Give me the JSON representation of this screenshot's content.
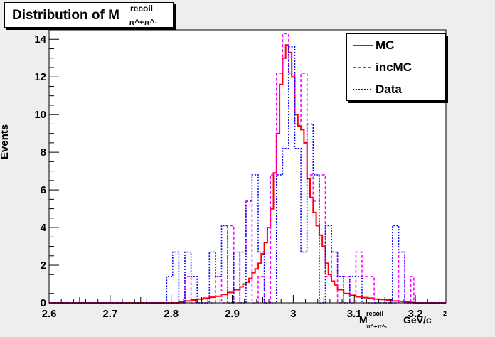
{
  "title": {
    "main": "Distribution of M",
    "sup": "recoil",
    "sub": "π^+π^-"
  },
  "legend": {
    "items": [
      {
        "label": "MC",
        "color": "#ff0000",
        "dash": ""
      },
      {
        "label": "incMC",
        "color": "#ff00ff",
        "dash": "4,3"
      },
      {
        "label": "Data",
        "color": "#0000ff",
        "dash": "2,2"
      }
    ]
  },
  "xaxis": {
    "main": "M",
    "sup": "recoil",
    "sub": "π^+π^-",
    "unit": "GeV/c",
    "unit_sup": "2"
  },
  "yaxis": {
    "label": "Events"
  },
  "chart_data": {
    "type": "line",
    "xlim": [
      2.6,
      3.25
    ],
    "ylim": [
      0,
      14.5
    ],
    "bin_width": 0.005,
    "xticks": [
      2.6,
      2.7,
      2.8,
      2.9,
      3.0,
      3.1,
      3.2
    ],
    "xtick_labels": [
      "2.6",
      "2.7",
      "2.8",
      "2.9",
      "3",
      "3.1",
      "3.2"
    ],
    "yticks": [
      0,
      2,
      4,
      6,
      8,
      10,
      12,
      14
    ],
    "ytick_labels": [
      "0",
      "2",
      "4",
      "6",
      "8",
      "10",
      "12",
      "14"
    ],
    "series": [
      {
        "name": "MC",
        "color": "#ff0000",
        "x": [
          2.815,
          2.825,
          2.835,
          2.845,
          2.855,
          2.865,
          2.875,
          2.885,
          2.895,
          2.905,
          2.915,
          2.92,
          2.925,
          2.93,
          2.935,
          2.94,
          2.945,
          2.95,
          2.955,
          2.96,
          2.965,
          2.97,
          2.975,
          2.98,
          2.985,
          2.99,
          2.995,
          3.0,
          3.005,
          3.01,
          3.015,
          3.02,
          3.025,
          3.03,
          3.035,
          3.04,
          3.045,
          3.05,
          3.055,
          3.06,
          3.065,
          3.07,
          3.075,
          3.085,
          3.095,
          3.105,
          3.115,
          3.125,
          3.135,
          3.145,
          3.155,
          3.165,
          3.175,
          3.185,
          3.195
        ],
        "values": [
          0.05,
          0.1,
          0.15,
          0.2,
          0.25,
          0.3,
          0.35,
          0.45,
          0.55,
          0.7,
          0.85,
          1.0,
          1.1,
          1.3,
          1.6,
          1.8,
          2.1,
          2.6,
          3.2,
          4.0,
          5.0,
          6.9,
          9.0,
          11.6,
          13.0,
          13.7,
          13.3,
          12.0,
          10.0,
          9.4,
          9.2,
          8.5,
          6.6,
          5.6,
          4.8,
          4.1,
          3.6,
          3.0,
          2.1,
          1.5,
          1.15,
          0.95,
          0.7,
          0.5,
          0.4,
          0.32,
          0.28,
          0.25,
          0.2,
          0.18,
          0.15,
          0.1,
          0.08,
          0.05,
          0.02
        ]
      },
      {
        "name": "incMC",
        "color": "#ff00ff",
        "x": [
          2.825,
          2.835,
          2.845,
          2.855,
          2.865,
          2.875,
          2.885,
          2.895,
          2.905,
          2.915,
          2.925,
          2.935,
          2.945,
          2.955,
          2.965,
          2.975,
          2.985,
          2.995,
          3.005,
          3.015,
          3.025,
          3.035,
          3.045,
          3.055,
          3.065,
          3.075,
          3.085,
          3.095,
          3.105,
          3.115,
          3.125,
          3.135,
          3.145,
          3.155,
          3.165,
          3.175,
          3.185,
          3.195
        ],
        "values": [
          1.4,
          0,
          0,
          0,
          0,
          1.4,
          0,
          4.1,
          0,
          2.7,
          5.4,
          0,
          1.4,
          0,
          6.8,
          12.2,
          14.3,
          12.2,
          9.5,
          12.2,
          6.8,
          5.4,
          6.8,
          1.4,
          2.7,
          0,
          1.4,
          0,
          2.7,
          1.4,
          1.4,
          0,
          0,
          0,
          0,
          2.7,
          0,
          1.4
        ]
      },
      {
        "name": "Data",
        "color": "#0000ff",
        "x": [
          2.795,
          2.805,
          2.815,
          2.825,
          2.835,
          2.845,
          2.855,
          2.865,
          2.875,
          2.885,
          2.895,
          2.905,
          2.915,
          2.925,
          2.935,
          2.945,
          2.955,
          2.965,
          2.975,
          2.985,
          2.995,
          3.005,
          3.015,
          3.025,
          3.035,
          3.045,
          3.055,
          3.065,
          3.075,
          3.085,
          3.095,
          3.105,
          3.115,
          3.125,
          3.135,
          3.145,
          3.155,
          3.165,
          3.175,
          3.185,
          3.195
        ],
        "values": [
          1.4,
          2.7,
          0,
          2.7,
          1.4,
          0,
          0,
          2.7,
          1.4,
          4.1,
          0,
          2.7,
          0,
          5.4,
          6.8,
          2.7,
          0,
          0,
          6.8,
          8.2,
          13.6,
          8.2,
          2.7,
          9.5,
          6.8,
          0,
          4.1,
          2.7,
          1.4,
          0,
          1.4,
          1.4,
          0,
          0,
          0,
          0,
          0,
          4.1,
          2.7,
          0,
          0
        ]
      }
    ]
  }
}
